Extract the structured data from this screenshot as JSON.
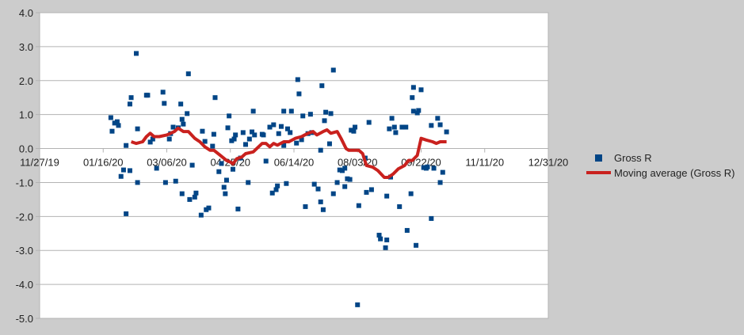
{
  "chart_data": {
    "type": "scatter",
    "title": "",
    "xlabel": "",
    "ylabel": "",
    "xlim": [
      "2019-11-27",
      "2020-12-31"
    ],
    "ylim": [
      -5.0,
      4.0
    ],
    "x_ticks": [
      "11/27/19",
      "01/16/20",
      "03/06/20",
      "04/25/20",
      "06/14/20",
      "08/03/20",
      "09/22/20",
      "11/11/20",
      "12/31/20"
    ],
    "x_tick_dates": [
      "2019-11-27",
      "2020-01-16",
      "2020-03-06",
      "2020-04-25",
      "2020-06-14",
      "2020-08-03",
      "2020-09-22",
      "2020-11-11",
      "2020-12-31"
    ],
    "y_ticks": [
      "4.0",
      "3.0",
      "2.0",
      "1.0",
      "0.0",
      "-1.0",
      "-2.0",
      "-3.0",
      "-4.0",
      "-5.0"
    ],
    "y_tick_values": [
      4,
      3,
      2,
      1,
      0,
      -1,
      -2,
      -3,
      -4,
      -5
    ],
    "grid": "horizontal",
    "legend_position": "right",
    "colors": {
      "points": "#004586",
      "moving_average": "#c9211e",
      "background": "#cccccc",
      "plot_area": "#ffffff",
      "grid": "#b3b3b3"
    },
    "series": [
      {
        "name": "Gross R",
        "type": "scatter",
        "points": [
          [
            "2020-01-22",
            0.91
          ],
          [
            "2020-01-23",
            0.51
          ],
          [
            "2020-01-25",
            0.75
          ],
          [
            "2020-01-27",
            0.79
          ],
          [
            "2020-01-28",
            0.68
          ],
          [
            "2020-01-30",
            -0.82
          ],
          [
            "2020-02-01",
            -0.63
          ],
          [
            "2020-02-03",
            0.09
          ],
          [
            "2020-02-03",
            -1.92
          ],
          [
            "2020-02-06",
            -0.65
          ],
          [
            "2020-02-06",
            1.31
          ],
          [
            "2020-02-07",
            1.5
          ],
          [
            "2020-02-11",
            2.8
          ],
          [
            "2020-02-12",
            0.58
          ],
          [
            "2020-02-12",
            -1.0
          ],
          [
            "2020-02-19",
            1.57
          ],
          [
            "2020-02-20",
            1.57
          ],
          [
            "2020-02-22",
            0.19
          ],
          [
            "2020-02-24",
            0.28
          ],
          [
            "2020-02-27",
            -0.58
          ],
          [
            "2020-03-03",
            1.66
          ],
          [
            "2020-03-04",
            1.33
          ],
          [
            "2020-03-05",
            -1.0
          ],
          [
            "2020-03-08",
            0.28
          ],
          [
            "2020-03-09",
            0.44
          ],
          [
            "2020-03-11",
            0.63
          ],
          [
            "2020-03-13",
            -0.96
          ],
          [
            "2020-03-15",
            0.61
          ],
          [
            "2020-03-17",
            1.31
          ],
          [
            "2020-03-18",
            0.86
          ],
          [
            "2020-03-18",
            -1.33
          ],
          [
            "2020-03-19",
            0.72
          ],
          [
            "2020-03-22",
            1.03
          ],
          [
            "2020-03-23",
            2.2
          ],
          [
            "2020-03-24",
            -1.5
          ],
          [
            "2020-03-26",
            -0.49
          ],
          [
            "2020-03-28",
            -1.43
          ],
          [
            "2020-03-29",
            -1.31
          ],
          [
            "2020-04-02",
            -1.96
          ],
          [
            "2020-04-03",
            0.51
          ],
          [
            "2020-04-05",
            0.21
          ],
          [
            "2020-04-06",
            -1.8
          ],
          [
            "2020-04-08",
            -1.75
          ],
          [
            "2020-04-11",
            0.07
          ],
          [
            "2020-04-12",
            0.42
          ],
          [
            "2020-04-13",
            1.5
          ],
          [
            "2020-04-16",
            -0.68
          ],
          [
            "2020-04-18",
            -0.44
          ],
          [
            "2020-04-20",
            -1.14
          ],
          [
            "2020-04-21",
            -1.33
          ],
          [
            "2020-04-22",
            -0.93
          ],
          [
            "2020-04-23",
            0.61
          ],
          [
            "2020-04-24",
            0.96
          ],
          [
            "2020-04-26",
            0.23
          ],
          [
            "2020-04-27",
            -0.61
          ],
          [
            "2020-04-28",
            0.28
          ],
          [
            "2020-04-29",
            0.4
          ],
          [
            "2020-05-01",
            -1.78
          ],
          [
            "2020-05-03",
            -0.28
          ],
          [
            "2020-05-05",
            0.47
          ],
          [
            "2020-05-07",
            0.12
          ],
          [
            "2020-05-09",
            -1.0
          ],
          [
            "2020-05-10",
            0.28
          ],
          [
            "2020-05-12",
            0.49
          ],
          [
            "2020-05-14",
            0.4
          ],
          [
            "2020-05-13",
            1.1
          ],
          [
            "2020-05-20",
            0.42
          ],
          [
            "2020-05-21",
            0.4
          ],
          [
            "2020-05-23",
            -0.37
          ],
          [
            "2020-05-26",
            0.63
          ],
          [
            "2020-05-28",
            -1.31
          ],
          [
            "2020-05-29",
            0.7
          ],
          [
            "2020-05-31",
            -1.21
          ],
          [
            "2020-06-01",
            -1.1
          ],
          [
            "2020-06-02",
            0.44
          ],
          [
            "2020-06-04",
            0.65
          ],
          [
            "2020-06-06",
            1.1
          ],
          [
            "2020-06-06",
            0.09
          ],
          [
            "2020-06-08",
            -1.03
          ],
          [
            "2020-06-09",
            0.58
          ],
          [
            "2020-06-11",
            0.47
          ],
          [
            "2020-06-12",
            1.1
          ],
          [
            "2020-06-16",
            0.16
          ],
          [
            "2020-06-17",
            2.03
          ],
          [
            "2020-06-18",
            1.61
          ],
          [
            "2020-06-20",
            0.26
          ],
          [
            "2020-06-21",
            0.96
          ],
          [
            "2020-06-23",
            -1.71
          ],
          [
            "2020-06-25",
            0.44
          ],
          [
            "2020-06-27",
            1.01
          ],
          [
            "2020-06-28",
            0.47
          ],
          [
            "2020-06-30",
            -1.05
          ],
          [
            "2020-07-03",
            -1.19
          ],
          [
            "2020-07-05",
            -1.57
          ],
          [
            "2020-07-05",
            -0.05
          ],
          [
            "2020-07-06",
            1.85
          ],
          [
            "2020-07-07",
            -1.8
          ],
          [
            "2020-07-08",
            0.82
          ],
          [
            "2020-07-09",
            1.07
          ],
          [
            "2020-07-12",
            0.14
          ],
          [
            "2020-07-13",
            1.03
          ],
          [
            "2020-07-15",
            -1.33
          ],
          [
            "2020-07-15",
            2.31
          ],
          [
            "2020-07-18",
            -1.0
          ],
          [
            "2020-07-20",
            -0.63
          ],
          [
            "2020-07-22",
            -0.65
          ],
          [
            "2020-07-24",
            -1.12
          ],
          [
            "2020-07-24",
            -0.58
          ],
          [
            "2020-07-26",
            -0.89
          ],
          [
            "2020-07-28",
            -0.91
          ],
          [
            "2020-07-29",
            0.54
          ],
          [
            "2020-07-31",
            0.51
          ],
          [
            "2020-08-01",
            0.63
          ],
          [
            "2020-08-04",
            -1.68
          ],
          [
            "2020-08-09",
            -0.28
          ],
          [
            "2020-08-10",
            -1.29
          ],
          [
            "2020-08-12",
            0.77
          ],
          [
            "2020-08-14",
            -1.21
          ],
          [
            "2020-08-20",
            -2.55
          ],
          [
            "2020-08-21",
            -2.66
          ],
          [
            "2020-08-25",
            -2.92
          ],
          [
            "2020-08-26",
            -2.69
          ],
          [
            "2020-08-26",
            -1.4
          ],
          [
            "2020-08-28",
            0.58
          ],
          [
            "2020-08-29",
            -0.84
          ],
          [
            "2020-08-30",
            0.89
          ],
          [
            "2020-09-01",
            0.63
          ],
          [
            "2020-09-02",
            0.47
          ],
          [
            "2020-09-05",
            -1.71
          ],
          [
            "2020-09-07",
            0.63
          ],
          [
            "2020-09-10",
            0.63
          ],
          [
            "2020-09-11",
            -2.41
          ],
          [
            "2020-09-14",
            -1.33
          ],
          [
            "2020-09-15",
            1.5
          ],
          [
            "2020-09-16",
            1.1
          ],
          [
            "2020-09-16",
            1.8
          ],
          [
            "2020-09-18",
            -2.85
          ],
          [
            "2020-09-19",
            1.05
          ],
          [
            "2020-09-20",
            1.12
          ],
          [
            "2020-09-22",
            1.73
          ],
          [
            "2020-09-24",
            -0.56
          ],
          [
            "2020-09-26",
            -0.58
          ],
          [
            "2020-09-27",
            -0.54
          ],
          [
            "2020-09-30",
            0.68
          ],
          [
            "2020-09-30",
            -2.06
          ],
          [
            "2020-10-02",
            -0.58
          ],
          [
            "2020-10-05",
            0.89
          ],
          [
            "2020-10-07",
            -1.0
          ],
          [
            "2020-10-07",
            0.7
          ],
          [
            "2020-10-09",
            -0.7
          ],
          [
            "2020-10-12",
            0.49
          ],
          [
            "2020-08-03",
            -4.6
          ]
        ]
      },
      {
        "name": "Moving average (Gross R)",
        "type": "line",
        "points": [
          [
            "2020-02-07",
            0.2
          ],
          [
            "2020-02-11",
            0.15
          ],
          [
            "2020-02-16",
            0.2
          ],
          [
            "2020-02-19",
            0.35
          ],
          [
            "2020-02-22",
            0.45
          ],
          [
            "2020-02-25",
            0.35
          ],
          [
            "2020-02-29",
            0.35
          ],
          [
            "2020-03-06",
            0.4
          ],
          [
            "2020-03-09",
            0.45
          ],
          [
            "2020-03-12",
            0.5
          ],
          [
            "2020-03-15",
            0.6
          ],
          [
            "2020-03-17",
            0.55
          ],
          [
            "2020-03-19",
            0.5
          ],
          [
            "2020-03-23",
            0.5
          ],
          [
            "2020-03-28",
            0.3
          ],
          [
            "2020-04-01",
            0.2
          ],
          [
            "2020-04-05",
            0.05
          ],
          [
            "2020-04-09",
            -0.05
          ],
          [
            "2020-04-12",
            -0.05
          ],
          [
            "2020-04-17",
            -0.2
          ],
          [
            "2020-04-22",
            -0.35
          ],
          [
            "2020-04-25",
            -0.4
          ],
          [
            "2020-04-27",
            -0.45
          ],
          [
            "2020-04-30",
            -0.3
          ],
          [
            "2020-05-04",
            -0.25
          ],
          [
            "2020-05-07",
            -0.15
          ],
          [
            "2020-05-13",
            -0.1
          ],
          [
            "2020-05-20",
            0.15
          ],
          [
            "2020-05-23",
            0.15
          ],
          [
            "2020-05-26",
            0.05
          ],
          [
            "2020-05-29",
            0.15
          ],
          [
            "2020-06-01",
            0.1
          ],
          [
            "2020-06-06",
            0.2
          ],
          [
            "2020-06-10",
            0.2
          ],
          [
            "2020-06-15",
            0.3
          ],
          [
            "2020-06-20",
            0.35
          ],
          [
            "2020-06-25",
            0.45
          ],
          [
            "2020-06-29",
            0.5
          ],
          [
            "2020-07-02",
            0.4
          ],
          [
            "2020-07-07",
            0.5
          ],
          [
            "2020-07-10",
            0.55
          ],
          [
            "2020-07-13",
            0.45
          ],
          [
            "2020-07-18",
            0.5
          ],
          [
            "2020-07-21",
            0.3
          ],
          [
            "2020-07-25",
            0.0
          ],
          [
            "2020-07-27",
            -0.05
          ],
          [
            "2020-07-31",
            -0.05
          ],
          [
            "2020-08-04",
            -0.05
          ],
          [
            "2020-08-07",
            -0.15
          ],
          [
            "2020-08-10",
            -0.5
          ],
          [
            "2020-08-15",
            -0.55
          ],
          [
            "2020-08-19",
            -0.65
          ],
          [
            "2020-08-24",
            -0.85
          ],
          [
            "2020-08-27",
            -0.85
          ],
          [
            "2020-08-31",
            -0.75
          ],
          [
            "2020-09-04",
            -0.6
          ],
          [
            "2020-09-09",
            -0.5
          ],
          [
            "2020-09-12",
            -0.35
          ],
          [
            "2020-09-15",
            -0.35
          ],
          [
            "2020-09-19",
            -0.2
          ],
          [
            "2020-09-22",
            0.3
          ],
          [
            "2020-09-26",
            0.25
          ],
          [
            "2020-10-01",
            0.2
          ],
          [
            "2020-10-04",
            0.15
          ],
          [
            "2020-10-07",
            0.2
          ],
          [
            "2020-10-10",
            0.2
          ],
          [
            "2020-10-12",
            0.2
          ]
        ]
      }
    ]
  }
}
